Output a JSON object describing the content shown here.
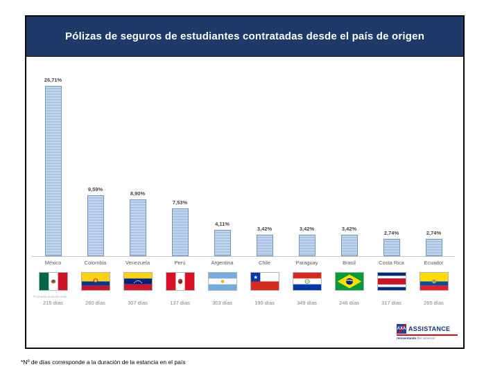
{
  "header": {
    "title": "Pólizas de seguros de estudiantes contratadas desde el país de origen"
  },
  "chart_data": {
    "type": "bar",
    "title": "Pólizas de seguros de estudiantes contratadas desde el país de origen",
    "categories": [
      "México",
      "Colombia",
      "Venezuela",
      "Perú",
      "Argentina",
      "Chile",
      "Paraguay",
      "Brasil",
      "Costa Rica",
      "Ecuador"
    ],
    "values": [
      26.71,
      9.59,
      8.9,
      7.53,
      4.11,
      3.42,
      3.42,
      3.42,
      2.74,
      2.74
    ],
    "value_labels": [
      "26,71%",
      "9,59%",
      "8,90%",
      "7,53%",
      "4,11%",
      "3,42%",
      "3,42%",
      "3,42%",
      "2,74%",
      "2,74%"
    ],
    "days": [
      "215 días",
      "260 días",
      "307 días",
      "137 días",
      "303 días",
      "190 días",
      "349 días",
      "246 días",
      "317 días",
      "265 días"
    ],
    "flags": [
      "mexico",
      "colombia",
      "venezuela",
      "peru",
      "argentina",
      "chile",
      "paraguay",
      "brasil",
      "costa-rica",
      "ecuador"
    ],
    "xlabel": "",
    "ylabel": "",
    "ylim": [
      0,
      28
    ],
    "grid": false,
    "legend": "none",
    "bar_color": "#aec6e4",
    "bar_border": "#6f97c6",
    "axis_note": "Promedio duración viaje"
  },
  "logo": {
    "brand": "AXA",
    "name": "ASSISTANCE",
    "tagline_left": "reinventando",
    "tagline_slash": " /",
    "tagline_right": "los servicios",
    "brand_blue": "#26418f",
    "brand_red": "#e30613"
  },
  "footnote": {
    "text": "*Nº de días corresponde a la duración de la estancia en el país"
  }
}
